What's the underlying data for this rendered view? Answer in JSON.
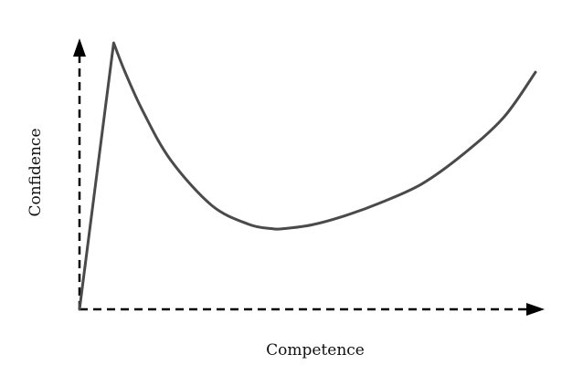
{
  "chart_data": {
    "type": "line",
    "title": "",
    "xlabel": "Competence",
    "ylabel": "Confidence",
    "xlim": [
      0,
      100
    ],
    "ylim": [
      0,
      100
    ],
    "grid": false,
    "legend": "none",
    "x_ticks_shown": false,
    "y_ticks_shown": false,
    "axis_style": "dashed with arrowheads",
    "line_color": "#4a4a4a",
    "axis_color": "#000000",
    "series": [
      {
        "x": [
          0,
          7.5,
          10,
          14,
          20,
          29,
          37,
          42,
          45,
          51,
          58,
          66,
          75,
          84,
          93,
          100
        ],
        "y": [
          0,
          100,
          89,
          74,
          56,
          39,
          32,
          30.3,
          30.3,
          31.7,
          35,
          40,
          47,
          58,
          72,
          89
        ]
      }
    ]
  }
}
